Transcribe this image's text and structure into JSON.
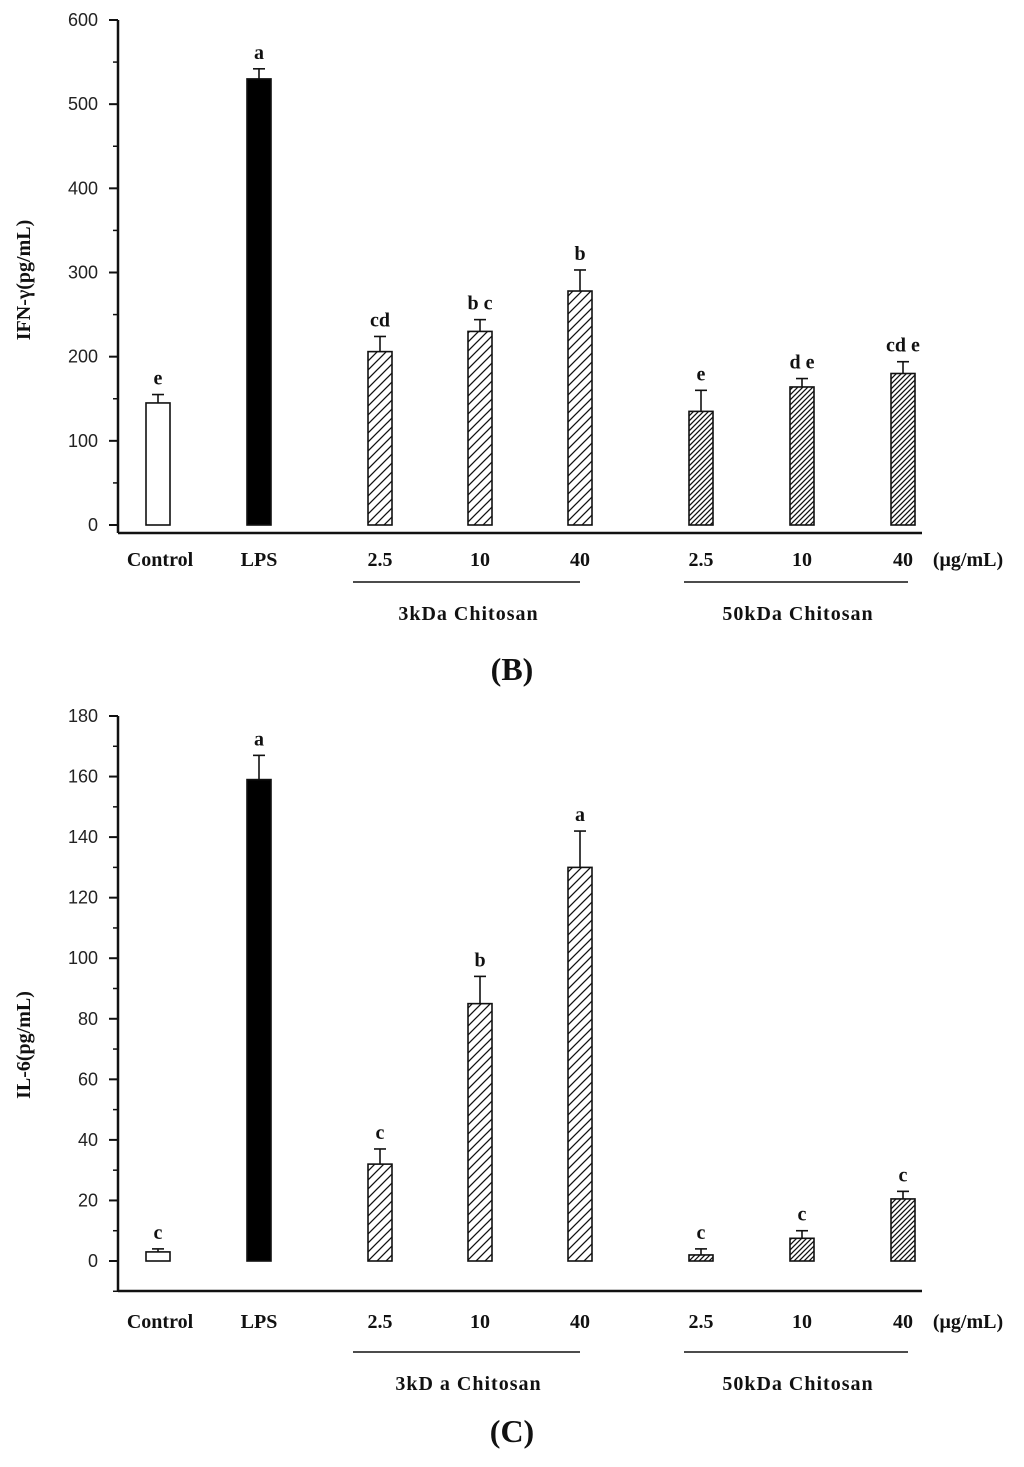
{
  "chart_data": [
    {
      "type": "bar",
      "panel_label": "(B)",
      "ylabel": "IFN-γ(pg/mL)",
      "ylim": [
        0,
        600
      ],
      "yticks": [
        "0",
        "100",
        "200",
        "300",
        "400",
        "500",
        "600"
      ],
      "unit_label": "(μg/mL)",
      "categories": [
        "Control",
        "LPS",
        "2.5",
        "10",
        "40",
        "2.5",
        "10",
        "40"
      ],
      "groups": [
        {
          "label": "3kDa Chitosan",
          "categories": [
            2,
            3,
            4
          ]
        },
        {
          "label": "50kDa Chitosan",
          "categories": [
            5,
            6,
            7
          ]
        }
      ],
      "series": [
        {
          "values": [
            145,
            530,
            206,
            230,
            278,
            135,
            164,
            180
          ],
          "errors": [
            10,
            12,
            18,
            14,
            25,
            25,
            10,
            14
          ],
          "significance": [
            "e",
            "a",
            "cd",
            "b c",
            "b",
            "e",
            "d e",
            "cd e"
          ],
          "fills": [
            "white",
            "black",
            "hatch-sparse",
            "hatch-sparse",
            "hatch-sparse",
            "hatch-dense",
            "hatch-dense",
            "hatch-dense"
          ]
        }
      ]
    },
    {
      "type": "bar",
      "panel_label": "(C)",
      "ylabel": "IL-6(pg/mL)",
      "ylim": [
        -10,
        180
      ],
      "yticks": [
        "0",
        "20",
        "40",
        "60",
        "80",
        "100",
        "120",
        "140",
        "160",
        "180"
      ],
      "unit_label": "(μg/mL)",
      "categories": [
        "Control",
        "LPS",
        "2.5",
        "10",
        "40",
        "2.5",
        "10",
        "40"
      ],
      "groups": [
        {
          "label": "3kD a Chitosan",
          "categories": [
            2,
            3,
            4
          ]
        },
        {
          "label": "50kDa Chitosan",
          "categories": [
            5,
            6,
            7
          ]
        }
      ],
      "series": [
        {
          "values": [
            3,
            159,
            32,
            85,
            130,
            2,
            7.5,
            20.5
          ],
          "errors": [
            1,
            8,
            5,
            9,
            12,
            2,
            2.5,
            2.5
          ],
          "significance": [
            "c",
            "a",
            "c",
            "b",
            "a",
            "c",
            "c",
            "c"
          ],
          "fills": [
            "white",
            "black",
            "hatch-sparse",
            "hatch-sparse",
            "hatch-sparse",
            "hatch-dense",
            "hatch-dense",
            "hatch-dense"
          ]
        }
      ]
    }
  ]
}
